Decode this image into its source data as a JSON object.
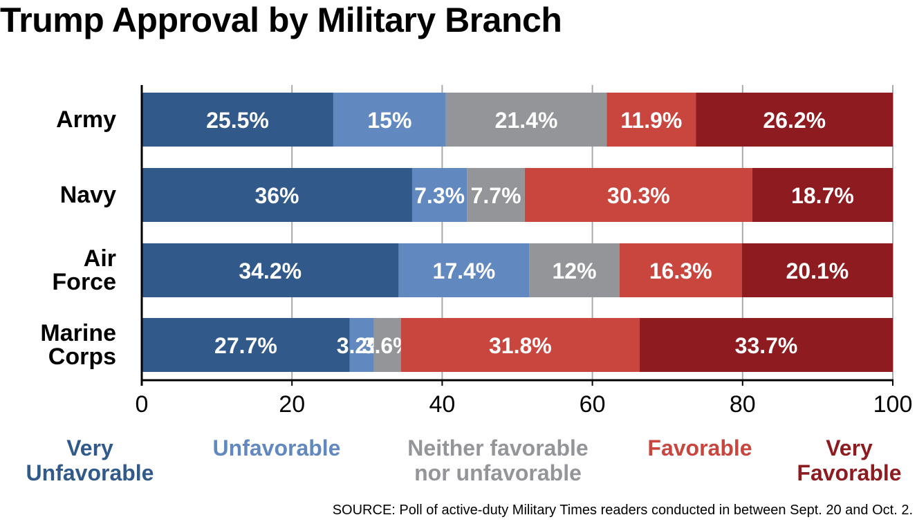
{
  "title": "Trump Approval by Military Branch",
  "source": "SOURCE: Poll of active-duty Military Times readers conducted in between Sept. 20 and Oct. 2.",
  "chart_data": {
    "type": "bar",
    "orientation": "horizontal",
    "stacked": true,
    "title": "Trump Approval by Military Branch",
    "categories": [
      [
        "Army"
      ],
      [
        "Navy"
      ],
      [
        "Air",
        "Force"
      ],
      [
        "Marine",
        "Corps"
      ]
    ],
    "xlim": [
      0,
      100
    ],
    "x_ticks": [
      "0",
      "20",
      "40",
      "60",
      "80",
      "100"
    ],
    "grid": "vertical",
    "legend_position": "bottom",
    "series": [
      {
        "name": "Very Unfavorable",
        "legend_lines": [
          "Very",
          "Unfavorable"
        ],
        "color": "#315a8a",
        "text_color": "#315a8a",
        "values": [
          25.5,
          36,
          34.2,
          27.7
        ],
        "labels": [
          "25.5%",
          "36%",
          "34.2%",
          "27.7%"
        ]
      },
      {
        "name": "Unfavorable",
        "legend_lines": [
          "Unfavorable"
        ],
        "color": "#6289bf",
        "text_color": "#6289bf",
        "values": [
          15,
          7.3,
          17.4,
          3.2
        ],
        "labels": [
          "15%",
          "7.3%",
          "17.4%",
          "3.2%"
        ]
      },
      {
        "name": "Neither favorable nor unfavorable",
        "legend_lines": [
          "Neither favorable",
          "nor unfavorable"
        ],
        "color": "#939598",
        "text_color": "#939598",
        "values": [
          21.4,
          7.7,
          12,
          3.6
        ],
        "labels": [
          "21.4%",
          "7.7%",
          "12%",
          "3.6%"
        ]
      },
      {
        "name": "Favorable",
        "legend_lines": [
          "Favorable"
        ],
        "color": "#c9463f",
        "text_color": "#c9463f",
        "values": [
          11.9,
          30.3,
          16.3,
          31.8
        ],
        "labels": [
          "11.9%",
          "30.3%",
          "16.3%",
          "31.8%"
        ]
      },
      {
        "name": "Very Favorable",
        "legend_lines": [
          "Very",
          "Favorable"
        ],
        "color": "#8e1b1f",
        "text_color": "#8e1b1f",
        "values": [
          26.2,
          18.7,
          20.1,
          33.7
        ],
        "labels": [
          "26.2%",
          "18.7%",
          "20.1%",
          "33.7%"
        ]
      }
    ]
  }
}
